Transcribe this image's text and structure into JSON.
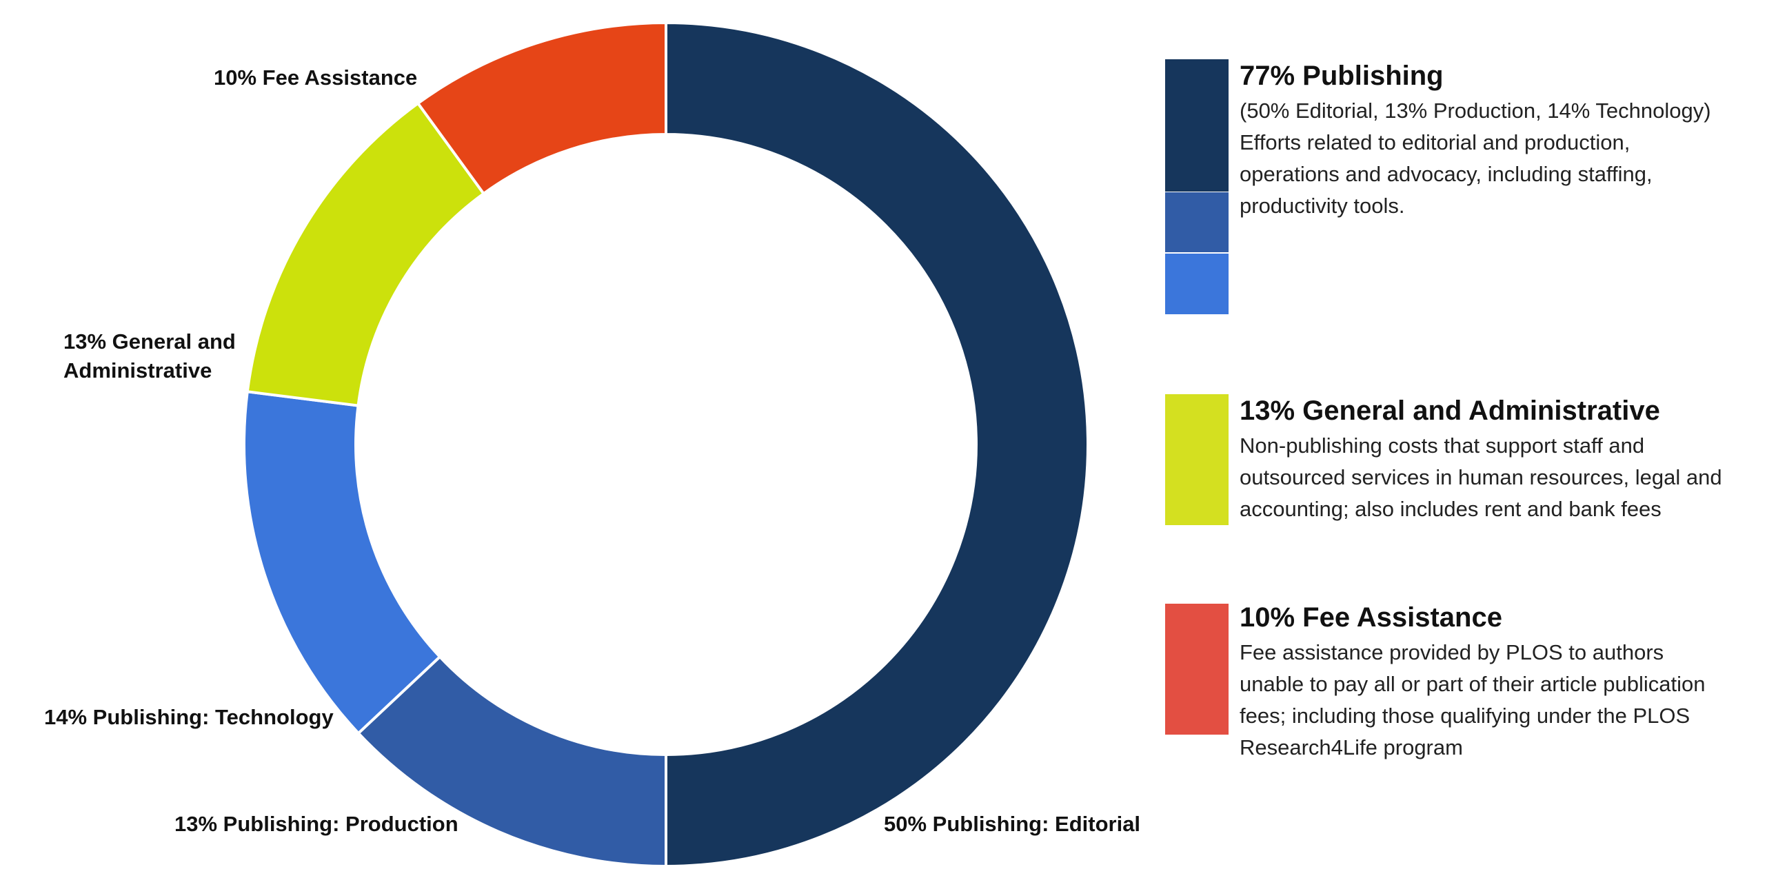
{
  "chart_data": {
    "type": "pie",
    "variant": "donut",
    "slices": [
      {
        "label": "50% Publishing: Editorial",
        "value": 50,
        "color": "#16365C"
      },
      {
        "label": "13% Publishing: Production",
        "value": 13,
        "color": "#315CA6"
      },
      {
        "label": "14% Publishing: Technology",
        "value": 14,
        "color": "#3B76DB"
      },
      {
        "label": "13% General and Administrative",
        "value": 13,
        "color": "#CCE10C"
      },
      {
        "label": "10% Fee Assistance",
        "value": 10,
        "color": "#E64517"
      }
    ]
  },
  "slice_labels": {
    "fee_assistance": "10% Fee Assistance",
    "general_admin_line1": "13% General and",
    "general_admin_line2": "Administrative",
    "technology": "14% Publishing: Technology",
    "production": "13% Publishing: Production",
    "editorial": "50% Publishing: Editorial"
  },
  "legend": {
    "publishing": {
      "title": "77% Publishing",
      "description": "(50% Editorial, 13% Production, 14% Technology) Efforts related to editorial and production, operations and advocacy, including staffing, productivity tools.",
      "colors": [
        "#16365C",
        "#315CA6",
        "#3B76DB"
      ]
    },
    "general_admin": {
      "title": "13% General and Administrative",
      "description": "Non-publishing costs that support staff and outsourced services in human resources, legal and accounting; also includes rent and bank fees",
      "color": "#D4E020"
    },
    "fee_assistance": {
      "title": "10% Fee Assistance",
      "description": "Fee assistance provided by PLOS to authors unable to pay all or part of their article publication fees; including those qualifying under the PLOS Research4Life program",
      "color": "#E34F42"
    }
  }
}
